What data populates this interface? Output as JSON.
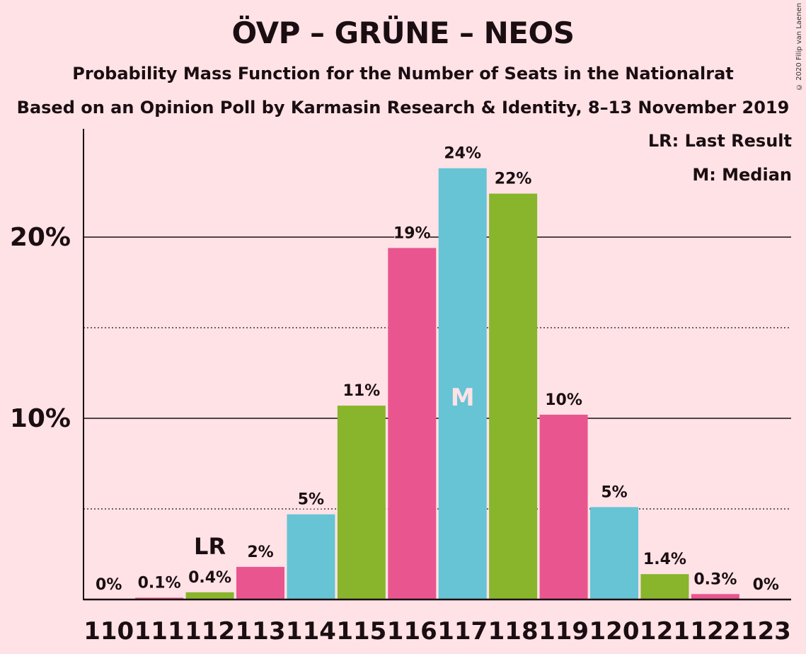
{
  "title": "ÖVP – GRÜNE – NEOS",
  "subtitle": "Probability Mass Function for the Number of Seats in the Nationalrat",
  "subtitle2": "Based on an Opinion Poll by Karmasin Research & Identity, 8–13 November 2019",
  "copyright": "© 2020 Filip van Laenen",
  "legend": {
    "last_result": "LR: Last Result",
    "median": "M: Median"
  },
  "colors": {
    "background": "#ffe2e6",
    "pink": "#e9558f",
    "cyan": "#66c4d4",
    "green": "#88b52b"
  },
  "chart_data": {
    "type": "bar",
    "categories": [
      "110",
      "111",
      "112",
      "113",
      "114",
      "115",
      "116",
      "117",
      "118",
      "119",
      "120",
      "121",
      "122",
      "123"
    ],
    "values": [
      0,
      0.1,
      0.4,
      1.8,
      4.7,
      10.7,
      19.4,
      23.8,
      22.4,
      10.2,
      5.1,
      1.4,
      0.3,
      0
    ],
    "labels": [
      "0%",
      "0.1%",
      "0.4%",
      "2%",
      "5%",
      "11%",
      "19%",
      "24%",
      "22%",
      "10%",
      "5%",
      "1.4%",
      "0.3%",
      "0%"
    ],
    "bar_colors": [
      "#88b52b",
      "#e9558f",
      "#88b52b",
      "#e9558f",
      "#66c4d4",
      "#88b52b",
      "#e9558f",
      "#66c4d4",
      "#88b52b",
      "#e9558f",
      "#66c4d4",
      "#88b52b",
      "#e9558f",
      "#66c4d4"
    ],
    "yticks": [
      {
        "value": 10,
        "label": "10%"
      },
      {
        "value": 20,
        "label": "20%"
      }
    ],
    "minor_gridlines": [
      5,
      15
    ],
    "ylim": [
      0,
      26
    ],
    "last_result_category": "112",
    "last_result_label": "LR",
    "median_category": "117",
    "median_label": "M",
    "xlabel": "",
    "ylabel": ""
  }
}
